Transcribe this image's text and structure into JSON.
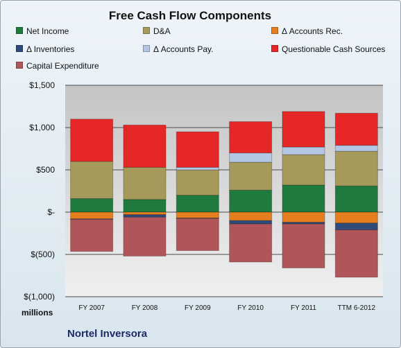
{
  "chart_data": {
    "type": "bar",
    "stacked": true,
    "title": "Free Cash Flow Components",
    "categories": [
      "FY 2007",
      "FY 2008",
      "FY 2009",
      "FY 2010",
      "FY 2011",
      "TTM 6-2012"
    ],
    "series": [
      {
        "name": "Net Income",
        "color": "#1f7a3e",
        "values": [
          160,
          150,
          200,
          260,
          320,
          310
        ]
      },
      {
        "name": "D&A",
        "color": "#a6995c",
        "values": [
          440,
          380,
          300,
          330,
          360,
          410
        ]
      },
      {
        "name": "Δ Accounts Rec.",
        "color": "#e57e1e",
        "values": [
          -80,
          -30,
          -70,
          -100,
          -120,
          -130
        ]
      },
      {
        "name": "Δ Inventories",
        "color": "#2f4b7a",
        "values": [
          -5,
          -30,
          -5,
          -40,
          -20,
          -80
        ]
      },
      {
        "name": "Δ Accounts Pay.",
        "color": "#b3c6e3",
        "values": [
          0,
          0,
          30,
          110,
          90,
          70
        ]
      },
      {
        "name": "Questionable Cash Sources",
        "color": "#e52727",
        "values": [
          500,
          500,
          420,
          370,
          420,
          380
        ]
      },
      {
        "name": "Capital Expenditure",
        "color": "#b0565a",
        "values": [
          -380,
          -460,
          -380,
          -450,
          -520,
          -560
        ]
      }
    ],
    "ylim": [
      -1000,
      1500
    ],
    "yticks": [
      -1000,
      -500,
      0,
      500,
      1000,
      1500
    ],
    "ytick_labels": [
      "$(1,000)",
      "$(500)",
      "$-",
      "$500",
      "$1,000",
      "$1,500"
    ],
    "ylabel": "millions",
    "xlabel": "",
    "grid": true,
    "legend_position": "top"
  },
  "footer": {
    "company": "Nortel Inversora"
  },
  "colors": {
    "plot_top": "#c8c8c8",
    "plot_bottom": "#eeeeee",
    "grid": "#4a4a4a"
  }
}
